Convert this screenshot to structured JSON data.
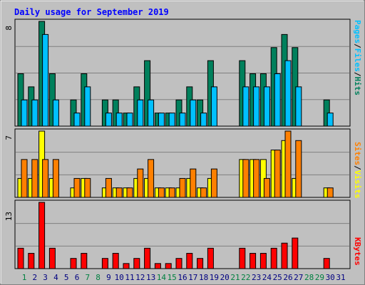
{
  "chart_data": [
    {
      "type": "bar",
      "title": "Daily usage for September 2019",
      "panel": "top",
      "ymax_label": "8",
      "ylim": [
        0,
        8
      ],
      "categories": [
        "1",
        "2",
        "3",
        "4",
        "5",
        "6",
        "7",
        "8",
        "9",
        "10",
        "11",
        "12",
        "13",
        "14",
        "15",
        "16",
        "17",
        "18",
        "19",
        "20",
        "21",
        "22",
        "23",
        "24",
        "25",
        "26",
        "27",
        "28",
        "29",
        "30",
        "31"
      ],
      "series": [
        {
          "name": "Hits",
          "color": "#00805c",
          "values": [
            4,
            3,
            8,
            4,
            0,
            2,
            4,
            0,
            2,
            2,
            1,
            3,
            5,
            1,
            1,
            2,
            3,
            2,
            5,
            0,
            0,
            5,
            4,
            4,
            6,
            7,
            6,
            0,
            0,
            2,
            0
          ]
        },
        {
          "name": "Files",
          "color": "#00c0ff",
          "values": [
            2,
            2,
            7,
            2,
            0,
            1,
            3,
            0,
            1,
            1,
            1,
            2,
            2,
            1,
            1,
            1,
            2,
            1,
            3,
            0,
            0,
            3,
            3,
            3,
            4,
            5,
            3,
            0,
            0,
            1,
            0
          ]
        }
      ]
    },
    {
      "type": "bar",
      "panel": "middle",
      "ymax_label": "7",
      "ylim": [
        0,
        7
      ],
      "series": [
        {
          "name": "Visits",
          "color": "#ffff00",
          "values": [
            2,
            2,
            7,
            2,
            0,
            1,
            2,
            0,
            1,
            1,
            1,
            2,
            2,
            1,
            1,
            1,
            2,
            1,
            2,
            0,
            0,
            4,
            4,
            4,
            5,
            6,
            2,
            0,
            0,
            1,
            0
          ]
        },
        {
          "name": "Sites",
          "color": "#ff8000",
          "values": [
            4,
            4,
            4,
            4,
            0,
            2,
            2,
            0,
            2,
            1,
            1,
            3,
            4,
            1,
            1,
            2,
            3,
            1,
            3,
            0,
            0,
            4,
            4,
            2,
            5,
            7,
            6,
            0,
            0,
            1,
            0
          ]
        }
      ]
    },
    {
      "type": "bar",
      "panel": "bottom",
      "ymax_label": "13",
      "ylim": [
        0,
        13
      ],
      "series": [
        {
          "name": "KBytes",
          "color": "#ff0000",
          "values": [
            4,
            3,
            13,
            4,
            0,
            2,
            3,
            0,
            2,
            3,
            1,
            2,
            4,
            1,
            1,
            2,
            3,
            2,
            4,
            0,
            0,
            4,
            3,
            3,
            4,
            5,
            6,
            0,
            0,
            2,
            0
          ]
        }
      ]
    }
  ],
  "x_labels": {
    "weekend_color": "#008040",
    "weekday_color": "#000080",
    "weekend_days": [
      "1",
      "7",
      "8",
      "14",
      "15",
      "21",
      "22",
      "28",
      "29"
    ]
  },
  "legend": {
    "top": [
      "Pages",
      "/",
      "Files",
      "/",
      "Hits"
    ],
    "top_colors": [
      "#00c0ff",
      "#000000",
      "#00c0ff",
      "#000000",
      "#00805c"
    ],
    "middle": [
      "Sites",
      "/",
      "Visits"
    ],
    "middle_colors": [
      "#ff8000",
      "#000000",
      "#ffff00"
    ],
    "bottom": [
      "KBytes"
    ],
    "bottom_colors": [
      "#ff0000"
    ]
  },
  "colors": {
    "background": "#c0c0c0",
    "title": "#0000ff",
    "grid": "#808080"
  }
}
